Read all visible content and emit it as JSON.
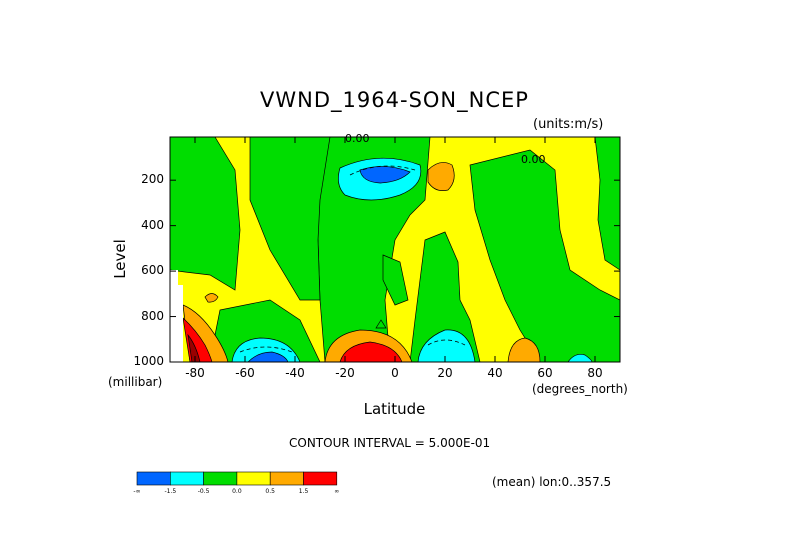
{
  "chart_data": {
    "type": "heatmap",
    "title": "VWND_1964-SON_NCEP",
    "units": "(units:m/s)",
    "xlabel": "Latitude",
    "xunit": "(degrees_north)",
    "ylabel": "Level",
    "yunit": "(millibar)",
    "xlim": [
      -90,
      90
    ],
    "ylim": [
      1000,
      10
    ],
    "x_ticks": [
      "-80",
      "-60",
      "-40",
      "-20",
      "0",
      "20",
      "40",
      "60",
      "80"
    ],
    "x_tick_values": [
      -80,
      -60,
      -40,
      -20,
      0,
      20,
      40,
      60,
      80
    ],
    "y_ticks": [
      "200",
      "400",
      "600",
      "800",
      "1000"
    ],
    "y_tick_values": [
      200,
      400,
      600,
      800,
      1000
    ],
    "contour_interval_text": "CONTOUR INTERVAL = 5.000E-01",
    "mean_text": "(mean) lon:0..357.5",
    "zero_contour_labels": [
      "0.00",
      "0.00"
    ],
    "colorbar": {
      "colors": [
        "#0066ff",
        "#00ffff",
        "#00dd00",
        "#ffff00",
        "#ffaa00",
        "#ff0000"
      ],
      "labels": [
        "-∞",
        "-1.5",
        "-0.5",
        "0.0",
        "0.5",
        "1.5",
        "∞"
      ]
    },
    "features": [
      {
        "sign": "negative",
        "lat": -10,
        "level": 180,
        "peak": -1.8,
        "desc": "upper tropospheric minimum"
      },
      {
        "sign": "negative",
        "lat": -55,
        "level": 975,
        "peak": -1.6
      },
      {
        "sign": "negative",
        "lat": 30,
        "level": 900,
        "peak": -1.0
      },
      {
        "sign": "positive",
        "lat": -12,
        "level": 960,
        "peak": 2.0
      },
      {
        "sign": "positive",
        "lat": 50,
        "level": 960,
        "peak": 1.0
      },
      {
        "sign": "positive",
        "lat": 18,
        "level": 170,
        "peak": 0.8
      },
      {
        "sign": "positive",
        "lat": -85,
        "level": 950,
        "peak": 2.0
      }
    ]
  }
}
